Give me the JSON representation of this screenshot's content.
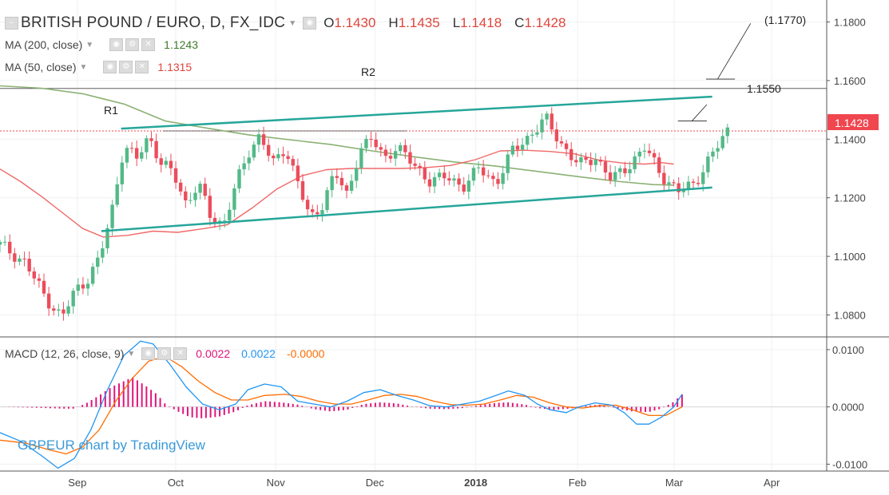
{
  "header": {
    "title": "BRITISH POUND / EURO, D, FX_IDC",
    "open_label": "O",
    "open": "1.1430",
    "high_label": "H",
    "high": "1.1435",
    "low_label": "L",
    "low": "1.1418",
    "close_label": "C",
    "close": "1.1428"
  },
  "indicators": {
    "ma200": {
      "label": "MA (200, close)",
      "value": "1.1243",
      "color": "#3f7a2b"
    },
    "ma50": {
      "label": "MA (50, close)",
      "value": "1.1315",
      "color": "#e0453d"
    },
    "macd": {
      "label": "MACD (12, 26, close, 9)",
      "hist": "0.0022",
      "macd": "0.0022",
      "signal": "-0.0000",
      "hist_color": "#e0157a",
      "macd_color": "#2196f3",
      "signal_color": "#ff6d00"
    }
  },
  "watermark": "GBPEUR chart by TradingView",
  "colors": {
    "up": "#53b987",
    "down": "#eb4d5c",
    "channel": "#26a69a",
    "ma50": "#f06868",
    "ma200": "#8bb174",
    "price_tag": "#f0464f"
  },
  "chart_data": {
    "type": "candlestick",
    "price_axis": {
      "ticks": [
        "1.1800",
        "1.1600",
        "1.1400",
        "1.1200",
        "1.1000",
        "1.0800"
      ],
      "range": [
        1.0725,
        1.1875
      ]
    },
    "macd_axis": {
      "ticks": [
        "0.0100",
        "0.0000",
        "-0.0100"
      ],
      "range": [
        -0.0112,
        0.0118
      ]
    },
    "x_labels": [
      "Sep",
      "Oct",
      "Nov",
      "Dec",
      "2018",
      "Feb",
      "Mar",
      "Apr"
    ],
    "last_price": "1.1428",
    "annotations": {
      "r1": "R1",
      "r2": "R2",
      "target1": "1.1550",
      "target2": "(1.1770)",
      "r2_level": 1.1573,
      "r1_level": 1.1428
    },
    "channel": {
      "upper": [
        [
          0.1465,
          1.1436
        ],
        [
          0.8615,
          1.1545
        ]
      ],
      "lower": [
        [
          0.1225,
          1.1086
        ],
        [
          0.8615,
          1.1235
        ]
      ]
    },
    "close_path": [
      [
        0.0,
        1.104
      ],
      [
        0.03,
        1.098
      ],
      [
        0.055,
        1.086
      ],
      [
        0.075,
        1.079
      ],
      [
        0.09,
        1.088
      ],
      [
        0.105,
        1.092
      ],
      [
        0.12,
        1.099
      ],
      [
        0.135,
        1.115
      ],
      [
        0.15,
        1.138
      ],
      [
        0.165,
        1.133
      ],
      [
        0.18,
        1.141
      ],
      [
        0.195,
        1.132
      ],
      [
        0.21,
        1.128
      ],
      [
        0.225,
        1.118
      ],
      [
        0.24,
        1.125
      ],
      [
        0.255,
        1.113
      ],
      [
        0.27,
        1.111
      ],
      [
        0.285,
        1.124
      ],
      [
        0.3,
        1.135
      ],
      [
        0.315,
        1.142
      ],
      [
        0.33,
        1.131
      ],
      [
        0.345,
        1.137
      ],
      [
        0.36,
        1.126
      ],
      [
        0.375,
        1.112
      ],
      [
        0.39,
        1.118
      ],
      [
        0.405,
        1.129
      ],
      [
        0.42,
        1.12
      ],
      [
        0.435,
        1.137
      ],
      [
        0.45,
        1.14
      ],
      [
        0.465,
        1.133
      ],
      [
        0.48,
        1.138
      ],
      [
        0.5,
        1.131
      ],
      [
        0.52,
        1.126
      ],
      [
        0.54,
        1.127
      ],
      [
        0.56,
        1.124
      ],
      [
        0.58,
        1.13
      ],
      [
        0.6,
        1.125
      ],
      [
        0.62,
        1.136
      ],
      [
        0.64,
        1.141
      ],
      [
        0.66,
        1.147
      ],
      [
        0.68,
        1.138
      ],
      [
        0.7,
        1.131
      ],
      [
        0.72,
        1.134
      ],
      [
        0.74,
        1.126
      ],
      [
        0.76,
        1.131
      ],
      [
        0.78,
        1.137
      ],
      [
        0.8,
        1.128
      ],
      [
        0.82,
        1.122
      ],
      [
        0.84,
        1.125
      ],
      [
        0.86,
        1.134
      ],
      [
        0.88,
        1.143
      ]
    ],
    "ma50_path": [
      [
        0.0,
        1.1298
      ],
      [
        0.025,
        1.1255
      ],
      [
        0.05,
        1.1205
      ],
      [
        0.075,
        1.115
      ],
      [
        0.1,
        1.1095
      ],
      [
        0.125,
        1.1066
      ],
      [
        0.155,
        1.1072
      ],
      [
        0.185,
        1.1086
      ],
      [
        0.215,
        1.1082
      ],
      [
        0.245,
        1.1094
      ],
      [
        0.275,
        1.1108
      ],
      [
        0.305,
        1.1165
      ],
      [
        0.335,
        1.123
      ],
      [
        0.365,
        1.1275
      ],
      [
        0.395,
        1.1296
      ],
      [
        0.425,
        1.13
      ],
      [
        0.455,
        1.13
      ],
      [
        0.485,
        1.13
      ],
      [
        0.515,
        1.1303
      ],
      [
        0.545,
        1.131
      ],
      [
        0.575,
        1.133
      ],
      [
        0.605,
        1.136
      ],
      [
        0.635,
        1.1362
      ],
      [
        0.665,
        1.1358
      ],
      [
        0.695,
        1.135
      ],
      [
        0.725,
        1.1328
      ],
      [
        0.755,
        1.1318
      ],
      [
        0.78,
        1.1315
      ],
      [
        0.8,
        1.132
      ],
      [
        0.815,
        1.1315
      ]
    ],
    "ma200_path": [
      [
        0.0,
        1.1582
      ],
      [
        0.05,
        1.1574
      ],
      [
        0.1,
        1.1555
      ],
      [
        0.15,
        1.152
      ],
      [
        0.2,
        1.1462
      ],
      [
        0.25,
        1.1438
      ],
      [
        0.3,
        1.1415
      ],
      [
        0.35,
        1.1398
      ],
      [
        0.4,
        1.1382
      ],
      [
        0.45,
        1.136
      ],
      [
        0.5,
        1.134
      ],
      [
        0.55,
        1.1322
      ],
      [
        0.6,
        1.1308
      ],
      [
        0.65,
        1.129
      ],
      [
        0.7,
        1.1272
      ],
      [
        0.75,
        1.1255
      ],
      [
        0.79,
        1.1245
      ],
      [
        0.815,
        1.1243
      ]
    ],
    "macd_line": [
      [
        0.0,
        -0.0045
      ],
      [
        0.025,
        -0.006
      ],
      [
        0.05,
        -0.0085
      ],
      [
        0.07,
        -0.0107
      ],
      [
        0.09,
        -0.009
      ],
      [
        0.11,
        -0.004
      ],
      [
        0.13,
        0.003
      ],
      [
        0.15,
        0.009
      ],
      [
        0.17,
        0.0115
      ],
      [
        0.185,
        0.011
      ],
      [
        0.205,
        0.0075
      ],
      [
        0.225,
        0.0035
      ],
      [
        0.245,
        0.0005
      ],
      [
        0.265,
        -0.0005
      ],
      [
        0.285,
        0.0005
      ],
      [
        0.3,
        0.003
      ],
      [
        0.32,
        0.004
      ],
      [
        0.34,
        0.0035
      ],
      [
        0.36,
        0.001
      ],
      [
        0.38,
        0.0005
      ],
      [
        0.4,
        0.0
      ],
      [
        0.42,
        0.001
      ],
      [
        0.44,
        0.0025
      ],
      [
        0.46,
        0.003
      ],
      [
        0.48,
        0.002
      ],
      [
        0.5,
        0.0012
      ],
      [
        0.52,
        0.0002
      ],
      [
        0.54,
        0.0
      ],
      [
        0.56,
        0.0005
      ],
      [
        0.58,
        0.001
      ],
      [
        0.6,
        0.002
      ],
      [
        0.615,
        0.0028
      ],
      [
        0.635,
        0.002
      ],
      [
        0.65,
        0.0005
      ],
      [
        0.665,
        -0.0005
      ],
      [
        0.685,
        -0.001
      ],
      [
        0.7,
        0.0
      ],
      [
        0.72,
        0.0007
      ],
      [
        0.74,
        0.0003
      ],
      [
        0.755,
        -0.001
      ],
      [
        0.77,
        -0.003
      ],
      [
        0.785,
        -0.003
      ],
      [
        0.8,
        -0.0018
      ],
      [
        0.815,
        0.0
      ],
      [
        0.825,
        0.0022
      ]
    ],
    "signal_line": [
      [
        0.0,
        -0.0058
      ],
      [
        0.03,
        -0.0063
      ],
      [
        0.06,
        -0.0075
      ],
      [
        0.08,
        -0.0082
      ],
      [
        0.1,
        -0.007
      ],
      [
        0.12,
        -0.004
      ],
      [
        0.14,
        0.001
      ],
      [
        0.16,
        0.005
      ],
      [
        0.18,
        0.008
      ],
      [
        0.2,
        0.0088
      ],
      [
        0.22,
        0.007
      ],
      [
        0.24,
        0.0045
      ],
      [
        0.26,
        0.0025
      ],
      [
        0.28,
        0.0012
      ],
      [
        0.3,
        0.0012
      ],
      [
        0.32,
        0.002
      ],
      [
        0.345,
        0.0022
      ],
      [
        0.365,
        0.0018
      ],
      [
        0.385,
        0.001
      ],
      [
        0.405,
        0.0005
      ],
      [
        0.425,
        0.0005
      ],
      [
        0.445,
        0.0012
      ],
      [
        0.465,
        0.002
      ],
      [
        0.485,
        0.0022
      ],
      [
        0.505,
        0.0018
      ],
      [
        0.525,
        0.001
      ],
      [
        0.545,
        0.0004
      ],
      [
        0.565,
        0.0003
      ],
      [
        0.585,
        0.0005
      ],
      [
        0.605,
        0.0012
      ],
      [
        0.625,
        0.002
      ],
      [
        0.645,
        0.0017
      ],
      [
        0.665,
        0.0007
      ],
      [
        0.685,
        0.0
      ],
      [
        0.705,
        -0.0002
      ],
      [
        0.725,
        0.0002
      ],
      [
        0.745,
        0.0003
      ],
      [
        0.765,
        -0.0005
      ],
      [
        0.785,
        -0.0015
      ],
      [
        0.805,
        -0.0015
      ],
      [
        0.825,
        0.0
      ]
    ],
    "histogram_envelope": [
      [
        0.0,
        0.0
      ],
      [
        0.03,
        -0.0001
      ],
      [
        0.055,
        -0.0002
      ],
      [
        0.075,
        -0.0003
      ],
      [
        0.09,
        -0.0003
      ],
      [
        0.105,
        0.0007
      ],
      [
        0.12,
        0.002
      ],
      [
        0.135,
        0.0035
      ],
      [
        0.15,
        0.0045
      ],
      [
        0.16,
        0.0052
      ],
      [
        0.175,
        0.0038
      ],
      [
        0.19,
        0.0022
      ],
      [
        0.2,
        0.0005
      ],
      [
        0.215,
        -0.0008
      ],
      [
        0.23,
        -0.0018
      ],
      [
        0.245,
        -0.002
      ],
      [
        0.265,
        -0.0017
      ],
      [
        0.285,
        -0.0008
      ],
      [
        0.3,
        0.0003
      ],
      [
        0.32,
        0.001
      ],
      [
        0.34,
        0.0008
      ],
      [
        0.36,
        0.0004
      ],
      [
        0.38,
        -0.0004
      ],
      [
        0.4,
        -0.0008
      ],
      [
        0.42,
        -0.0005
      ],
      [
        0.44,
        0.0005
      ],
      [
        0.46,
        0.0008
      ],
      [
        0.48,
        0.0006
      ],
      [
        0.5,
        0.0
      ],
      [
        0.52,
        -0.0003
      ],
      [
        0.54,
        -0.0004
      ],
      [
        0.56,
        -0.0002
      ],
      [
        0.58,
        0.0003
      ],
      [
        0.6,
        0.0007
      ],
      [
        0.615,
        0.0008
      ],
      [
        0.635,
        0.0004
      ],
      [
        0.65,
        -0.0002
      ],
      [
        0.67,
        -0.0005
      ],
      [
        0.69,
        -0.0003
      ],
      [
        0.71,
        0.0002
      ],
      [
        0.725,
        0.0004
      ],
      [
        0.745,
        -0.0002
      ],
      [
        0.765,
        -0.0008
      ],
      [
        0.785,
        -0.0009
      ],
      [
        0.8,
        -0.0003
      ],
      [
        0.815,
        0.0009
      ],
      [
        0.825,
        0.0022
      ]
    ],
    "bar_count": 150
  }
}
